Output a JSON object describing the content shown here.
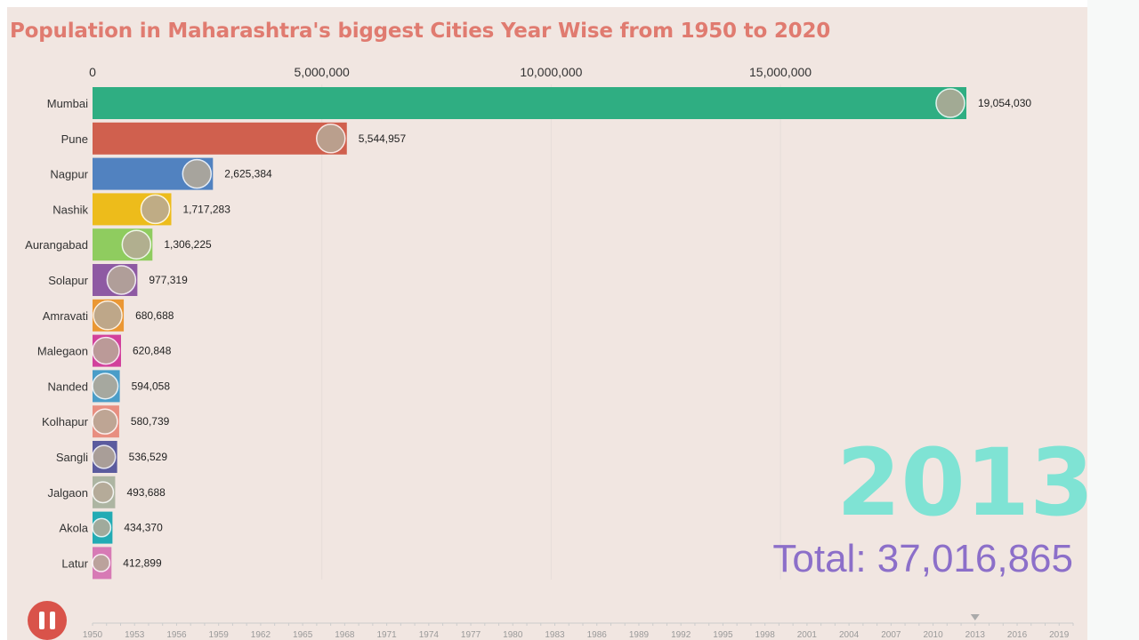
{
  "colors": {
    "title": "#e07b70",
    "year": "#7fe3d4",
    "total": "#8c6fc9",
    "button": "#d9534a",
    "grid": "#e6ddd9",
    "timeline": "#cccccc"
  },
  "controls": {
    "play_pause_icon": "pause-icon",
    "year_marker": "triangle-down-icon"
  },
  "current_year": "2013",
  "total_label": "Total: 37,016,865",
  "chart_data": {
    "type": "bar",
    "orientation": "horizontal",
    "title": "Population in Maharashtra's biggest Cities Year Wise from 1950 to 2020",
    "xlabel": "",
    "ylabel": "",
    "xlim": [
      0,
      19054030
    ],
    "x_ticks": [
      0,
      5000000,
      10000000,
      15000000
    ],
    "x_tick_labels": [
      "0",
      "5,000,000",
      "10,000,000",
      "15,000,000"
    ],
    "grid": true,
    "categories": [
      "Mumbai",
      "Pune",
      "Nagpur",
      "Nashik",
      "Aurangabad",
      "Solapur",
      "Amravati",
      "Malegaon",
      "Nanded",
      "Kolhapur",
      "Sangli",
      "Jalgaon",
      "Akola",
      "Latur"
    ],
    "values": [
      19054030,
      5544957,
      2625384,
      1717283,
      1306225,
      977319,
      680688,
      620848,
      594058,
      580739,
      536529,
      493688,
      434370,
      412899
    ],
    "value_labels": [
      "19,054,030",
      "5,544,957",
      "2,625,384",
      "1,717,283",
      "1,306,225",
      "977,319",
      "680,688",
      "620,848",
      "594,058",
      "580,739",
      "536,529",
      "493,688",
      "434,370",
      "412,899"
    ],
    "bar_colors": [
      "#2fae82",
      "#d0604e",
      "#5182c0",
      "#edbc1b",
      "#8fcc5f",
      "#8e5aa3",
      "#ea9734",
      "#d2419c",
      "#4a9dc8",
      "#e88e80",
      "#5b5b9e",
      "#adb5a2",
      "#22abb4",
      "#d77ab5"
    ],
    "timeline": {
      "years": [
        "1950",
        "1953",
        "1956",
        "1959",
        "1962",
        "1965",
        "1968",
        "1971",
        "1974",
        "1977",
        "1980",
        "1983",
        "1986",
        "1989",
        "1992",
        "1995",
        "1998",
        "2001",
        "2004",
        "2007",
        "2010",
        "2013",
        "2016",
        "2019"
      ],
      "start": 1950,
      "end": 2020,
      "current": 2013
    }
  }
}
